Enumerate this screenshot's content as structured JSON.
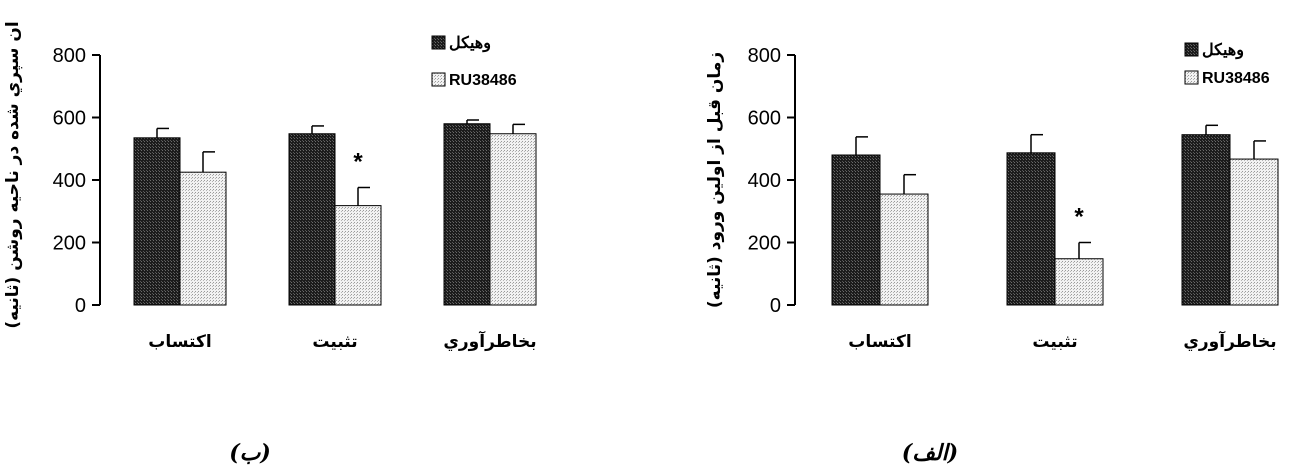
{
  "chart_data": [
    {
      "type": "bar",
      "panel_label": "(ب)",
      "ylabel": "ان سپري شده در ناحيه روشن (ثانيه)",
      "ylim": [
        0,
        800
      ],
      "yticks": [
        "0",
        "200",
        "400",
        "600",
        "800"
      ],
      "categories": [
        "اكتساب",
        "تثبيت",
        "بخاطرآوري"
      ],
      "series": [
        {
          "name": "وهيكل",
          "values": [
            535,
            548,
            580
          ],
          "errors": [
            30,
            25,
            12
          ],
          "color": "#2a2a2a"
        },
        {
          "name": "RU38486",
          "values": [
            425,
            318,
            548
          ],
          "errors": [
            65,
            58,
            30
          ],
          "color": "#e6e6e6"
        }
      ],
      "annotations": [
        {
          "category_index": 1,
          "series_index": 1,
          "text": "*"
        }
      ],
      "legend_position": "top-right"
    },
    {
      "type": "bar",
      "panel_label": "(الف)",
      "ylabel": "زمان قبل از اولين ورود (ثانيه)",
      "ylim": [
        0,
        800
      ],
      "yticks": [
        "0",
        "200",
        "400",
        "600",
        "800"
      ],
      "categories": [
        "اكتساب",
        "تثبيت",
        "بخاطرآوري"
      ],
      "series": [
        {
          "name": "وهيكل",
          "values": [
            480,
            487,
            545
          ],
          "errors": [
            58,
            58,
            30
          ],
          "color": "#2a2a2a"
        },
        {
          "name": "RU38486",
          "values": [
            355,
            148,
            467
          ],
          "errors": [
            62,
            52,
            58
          ],
          "color": "#e6e6e6"
        }
      ],
      "annotations": [
        {
          "category_index": 1,
          "series_index": 1,
          "text": "*"
        }
      ],
      "legend_position": "top-right"
    }
  ]
}
